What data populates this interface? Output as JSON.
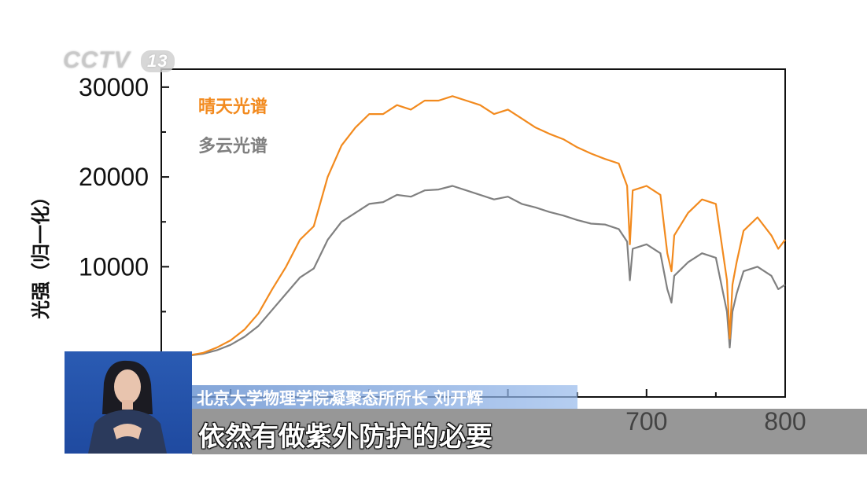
{
  "broadcast": {
    "channel_logo": "CCTV",
    "channel_number": "13",
    "speaker_caption": "北京大学物理学院凝聚态所所长 刘开辉",
    "subtitle": "依然有做紫外防护的必要"
  },
  "chart_data": {
    "type": "line",
    "ylabel": "光强（归一化）",
    "xlabel": "",
    "xlim": [
      350,
      800
    ],
    "ylim": [
      -4500,
      32000
    ],
    "x_ticks": [
      700,
      800
    ],
    "y_ticks": [
      10000,
      20000,
      30000
    ],
    "y_tick_labels": [
      "10000",
      "20000",
      "30000"
    ],
    "x_tick_labels": [
      "700",
      "800"
    ],
    "legend_position": "top-left",
    "grid": false,
    "series": [
      {
        "name": "晴天光谱",
        "color": "#f28a1e",
        "x": [
          350,
          360,
          370,
          380,
          390,
          400,
          410,
          420,
          430,
          440,
          450,
          460,
          470,
          480,
          490,
          500,
          510,
          520,
          530,
          540,
          550,
          560,
          570,
          580,
          590,
          600,
          610,
          620,
          630,
          640,
          650,
          660,
          670,
          680,
          686,
          688,
          690,
          700,
          710,
          715,
          718,
          720,
          730,
          740,
          750,
          758,
          760,
          762,
          765,
          770,
          780,
          790,
          795,
          800
        ],
        "y": [
          0,
          0,
          150,
          400,
          1000,
          1800,
          3000,
          4800,
          7500,
          10000,
          13000,
          14500,
          20000,
          23500,
          25500,
          27000,
          27000,
          28000,
          27500,
          28500,
          28500,
          29000,
          28500,
          28000,
          27000,
          27500,
          26500,
          25500,
          24800,
          24200,
          23300,
          22600,
          22000,
          21500,
          19000,
          12500,
          18500,
          19000,
          18000,
          11500,
          9500,
          13500,
          16000,
          17500,
          17000,
          8500,
          2000,
          8000,
          10500,
          14000,
          15500,
          13500,
          12000,
          13000
        ]
      },
      {
        "name": "多云光谱",
        "color": "#808080",
        "x": [
          350,
          360,
          370,
          380,
          390,
          400,
          410,
          420,
          430,
          440,
          450,
          460,
          470,
          480,
          490,
          500,
          510,
          520,
          530,
          540,
          550,
          560,
          570,
          580,
          590,
          600,
          610,
          620,
          630,
          640,
          650,
          660,
          670,
          680,
          686,
          688,
          690,
          700,
          710,
          715,
          718,
          720,
          730,
          740,
          750,
          758,
          760,
          762,
          765,
          770,
          780,
          790,
          795,
          800
        ],
        "y": [
          0,
          0,
          100,
          300,
          700,
          1300,
          2200,
          3400,
          5200,
          7000,
          8800,
          9800,
          13000,
          15000,
          16000,
          17000,
          17200,
          18000,
          17800,
          18500,
          18600,
          19000,
          18500,
          18000,
          17500,
          17800,
          17000,
          16600,
          16100,
          15700,
          15200,
          14800,
          14700,
          14200,
          12800,
          8500,
          12000,
          12500,
          11500,
          7500,
          6000,
          9000,
          10500,
          11500,
          11000,
          5000,
          1000,
          5000,
          7000,
          9500,
          10000,
          9000,
          7500,
          8000
        ]
      }
    ]
  }
}
